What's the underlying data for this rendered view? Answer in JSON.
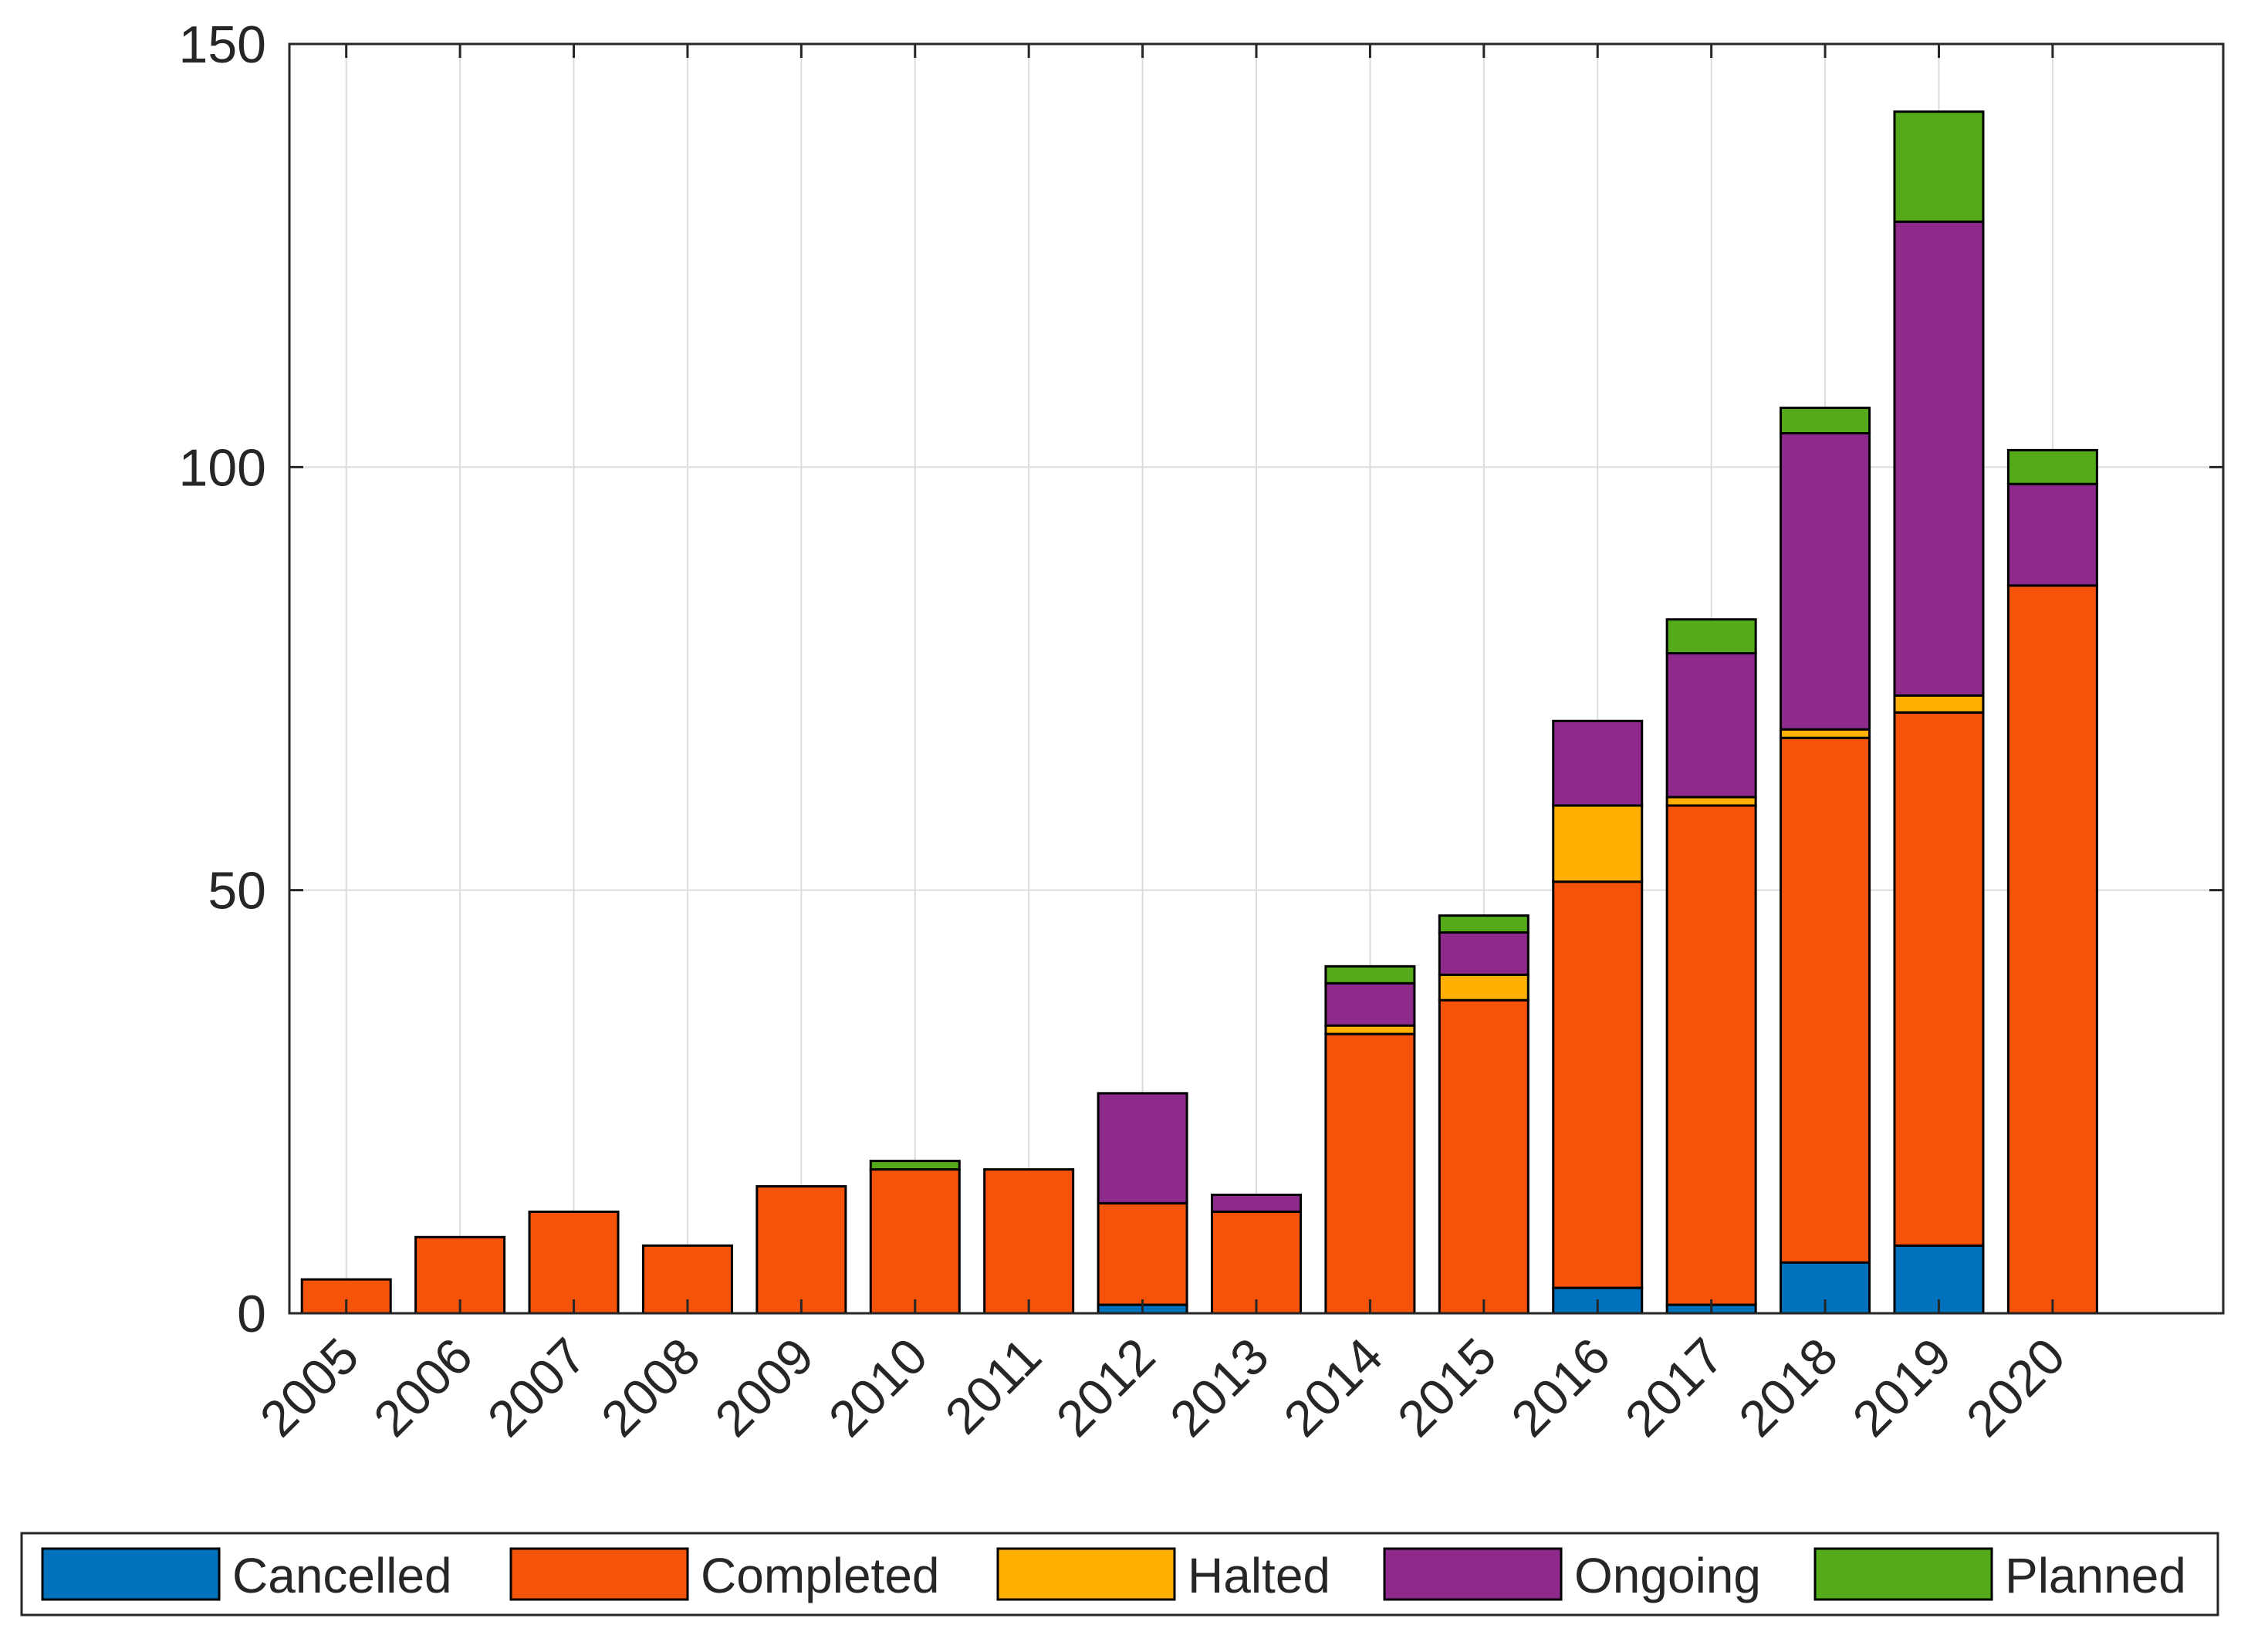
{
  "chart_data": {
    "type": "bar",
    "stacked": true,
    "title": "",
    "xlabel": "",
    "ylabel": "",
    "ylim": [
      0,
      150
    ],
    "yticks": [
      0,
      50,
      100,
      150
    ],
    "grid": true,
    "legend_position": "bottom",
    "categories": [
      "2005",
      "2006",
      "2007",
      "2008",
      "2009",
      "2010",
      "2011",
      "2012",
      "2013",
      "2014",
      "2015",
      "2016",
      "2017",
      "2018",
      "2019",
      "2020"
    ],
    "series": [
      {
        "name": "Cancelled",
        "color": "#0072BD",
        "values": [
          0,
          0,
          0,
          0,
          0,
          0,
          0,
          1,
          0,
          0,
          0,
          3,
          1,
          6,
          8,
          0
        ]
      },
      {
        "name": "Completed",
        "color": "#F5520A",
        "values": [
          4,
          9,
          12,
          8,
          15,
          17,
          17,
          12,
          12,
          33,
          37,
          48,
          59,
          62,
          63,
          86
        ]
      },
      {
        "name": "Halted",
        "color": "#FFB000",
        "values": [
          0,
          0,
          0,
          0,
          0,
          0,
          0,
          0,
          0,
          1,
          3,
          9,
          1,
          1,
          2,
          0
        ]
      },
      {
        "name": "Ongoing",
        "color": "#8E2A8C",
        "values": [
          0,
          0,
          0,
          0,
          0,
          0,
          0,
          13,
          2,
          5,
          5,
          10,
          17,
          35,
          56,
          12
        ]
      },
      {
        "name": "Planned",
        "color": "#55AA1A",
        "values": [
          0,
          0,
          0,
          0,
          0,
          1,
          0,
          0,
          0,
          2,
          2,
          0,
          4,
          3,
          13,
          4
        ]
      }
    ]
  }
}
